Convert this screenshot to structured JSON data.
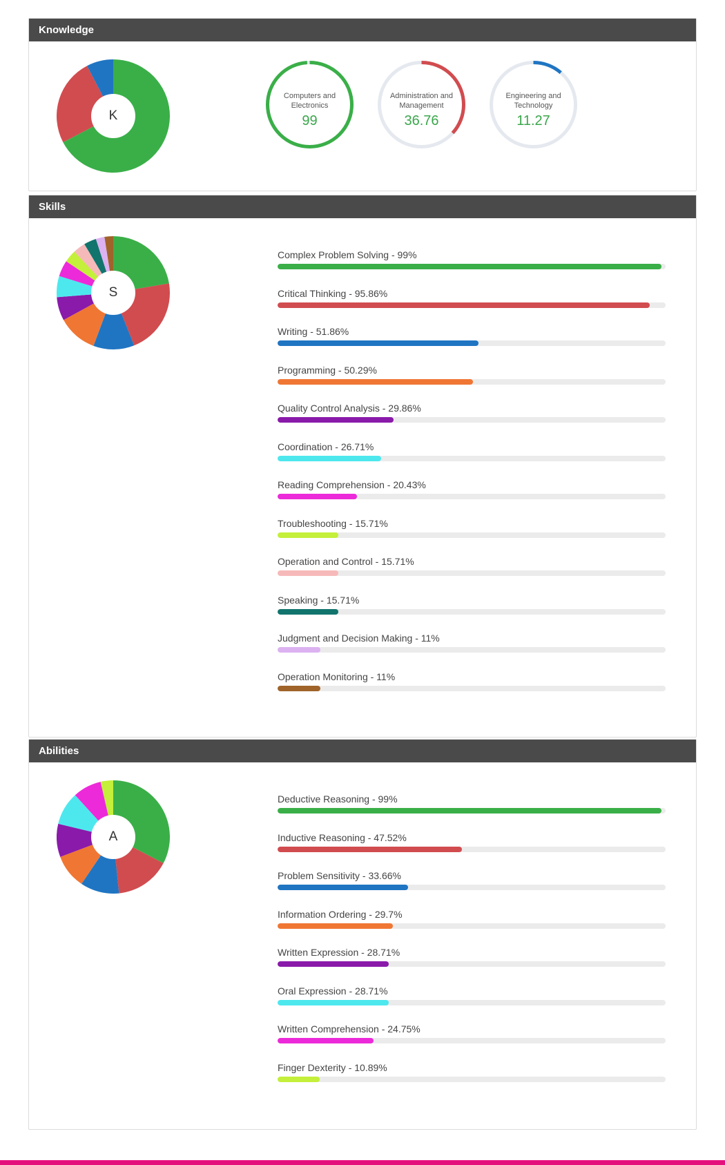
{
  "knowledge": {
    "title": "Knowledge",
    "letter": "K",
    "slices": [
      {
        "value": 99,
        "color": "#3aaf48"
      },
      {
        "value": 36.76,
        "color": "#d14c4f"
      },
      {
        "value": 11.27,
        "color": "#1f75c2"
      }
    ],
    "rings": [
      {
        "label": "Computers and Electronics",
        "value": "99",
        "percent": 99,
        "color": "#3aaf48"
      },
      {
        "label": "Administration and Management",
        "value": "36.76",
        "percent": 36.76,
        "color": "#d14c4f"
      },
      {
        "label": "Engineering and Technology",
        "value": "11.27",
        "percent": 11.27,
        "color": "#1f75c2"
      }
    ]
  },
  "skills": {
    "title": "Skills",
    "letter": "S",
    "items": [
      {
        "label": "Complex Problem Solving - 99%",
        "value": 99,
        "color": "#3aaf48"
      },
      {
        "label": "Critical Thinking - 95.86%",
        "value": 95.86,
        "color": "#d14c4f"
      },
      {
        "label": "Writing - 51.86%",
        "value": 51.86,
        "color": "#1f75c2"
      },
      {
        "label": "Programming - 50.29%",
        "value": 50.29,
        "color": "#f07633"
      },
      {
        "label": "Quality Control Analysis - 29.86%",
        "value": 29.86,
        "color": "#8a1aaa"
      },
      {
        "label": "Coordination - 26.71%",
        "value": 26.71,
        "color": "#4de8ee"
      },
      {
        "label": "Reading Comprehension - 20.43%",
        "value": 20.43,
        "color": "#ec2ad9"
      },
      {
        "label": "Troubleshooting - 15.71%",
        "value": 15.71,
        "color": "#c4ef3a"
      },
      {
        "label": "Operation and Control - 15.71%",
        "value": 15.71,
        "color": "#f6b9b9"
      },
      {
        "label": "Speaking - 15.71%",
        "value": 15.71,
        "color": "#11746d"
      },
      {
        "label": "Judgment and Decision Making - 11%",
        "value": 11,
        "color": "#dcb2f1"
      },
      {
        "label": "Operation Monitoring - 11%",
        "value": 11,
        "color": "#a0632a"
      }
    ]
  },
  "abilities": {
    "title": "Abilities",
    "letter": "A",
    "items": [
      {
        "label": "Deductive Reasoning - 99%",
        "value": 99,
        "color": "#3aaf48"
      },
      {
        "label": "Inductive Reasoning - 47.52%",
        "value": 47.52,
        "color": "#d14c4f"
      },
      {
        "label": "Problem Sensitivity - 33.66%",
        "value": 33.66,
        "color": "#1f75c2"
      },
      {
        "label": "Information Ordering - 29.7%",
        "value": 29.7,
        "color": "#f07633"
      },
      {
        "label": "Written Expression - 28.71%",
        "value": 28.71,
        "color": "#8a1aaa"
      },
      {
        "label": "Oral Expression - 28.71%",
        "value": 28.71,
        "color": "#4de8ee"
      },
      {
        "label": "Written Comprehension - 24.75%",
        "value": 24.75,
        "color": "#ec2ad9"
      },
      {
        "label": "Finger Dexterity - 10.89%",
        "value": 10.89,
        "color": "#c4ef3a"
      }
    ]
  },
  "accent_color": "#e4117d",
  "header_color": "#4a4a4a"
}
